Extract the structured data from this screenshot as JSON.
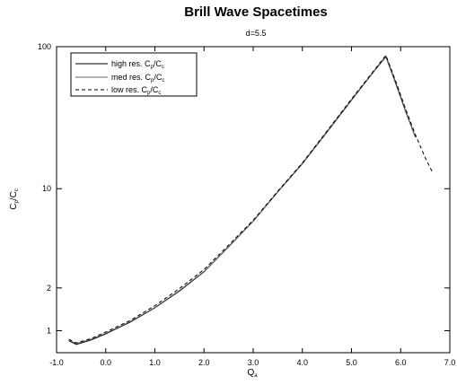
{
  "chart_data": {
    "type": "line",
    "title": "Brill Wave Spacetimes",
    "subtitle": "d=5.5",
    "xlabel": {
      "main": "Q",
      "sub": "a"
    },
    "ylabel": {
      "main": "C",
      "sub1": "p",
      "mid": "/C",
      "sub2": "c"
    },
    "xlim": [
      -1.0,
      7.0
    ],
    "ylim": [
      0.7,
      100
    ],
    "y_scale": "log",
    "x_ticks": [
      -1.0,
      0.0,
      1.0,
      2.0,
      3.0,
      4.0,
      5.0,
      6.0,
      7.0
    ],
    "x_tick_labels": [
      "-1.0",
      "0.0",
      "1.0",
      "2.0",
      "3.0",
      "4.0",
      "5.0",
      "6.0",
      "7.0"
    ],
    "y_ticks": [
      1,
      2,
      10,
      100
    ],
    "y_tick_labels": [
      "1",
      "2",
      "10",
      "100"
    ],
    "grid": false,
    "legend_position": "top-left",
    "series": [
      {
        "name": {
          "pre": "high res. C",
          "sub1": "p",
          "mid": "/C",
          "sub2": "c"
        },
        "style": "solid",
        "color": "#000000",
        "x": [
          -0.75,
          -0.6,
          -0.3,
          0.0,
          0.5,
          1.0,
          1.5,
          2.0,
          2.5,
          3.0,
          3.5,
          4.0,
          4.5,
          5.0,
          5.5,
          5.7,
          5.9,
          6.1,
          6.3
        ],
        "y": [
          0.85,
          0.8,
          0.86,
          0.95,
          1.15,
          1.45,
          1.9,
          2.6,
          3.9,
          5.9,
          9.5,
          15.0,
          25.0,
          42.0,
          70.0,
          85.0,
          55.0,
          35.0,
          23.0
        ]
      },
      {
        "name": {
          "pre": "med res. C",
          "sub1": "p",
          "mid": "/C",
          "sub2": "c"
        },
        "style": "solid",
        "color": "#666666",
        "x": [
          -0.75,
          -0.6,
          -0.3,
          0.0,
          0.5,
          1.0,
          1.5,
          2.0,
          2.5,
          3.0,
          3.5,
          4.0,
          4.5,
          5.0,
          5.5,
          5.7,
          5.9,
          6.1,
          6.3
        ],
        "y": [
          0.86,
          0.81,
          0.87,
          0.96,
          1.16,
          1.46,
          1.92,
          2.62,
          3.92,
          5.92,
          9.55,
          15.1,
          25.2,
          42.4,
          70.5,
          86.0,
          56.0,
          35.5,
          23.2
        ]
      },
      {
        "name": {
          "pre": "low res. C",
          "sub1": "p",
          "mid": "/C",
          "sub2": "c"
        },
        "style": "dashed",
        "color": "#000000",
        "x": [
          -0.75,
          -0.6,
          -0.3,
          0.0,
          0.5,
          1.0,
          1.5,
          2.0,
          2.5,
          3.0,
          3.5,
          4.0,
          4.5,
          5.0,
          5.5,
          5.7,
          5.9,
          6.1,
          6.3,
          6.5,
          6.65
        ],
        "y": [
          0.87,
          0.82,
          0.88,
          0.98,
          1.18,
          1.5,
          1.98,
          2.7,
          4.0,
          6.0,
          9.6,
          15.2,
          25.4,
          42.8,
          71.0,
          87.0,
          57.0,
          36.5,
          24.0,
          16.5,
          13.0
        ]
      }
    ]
  }
}
